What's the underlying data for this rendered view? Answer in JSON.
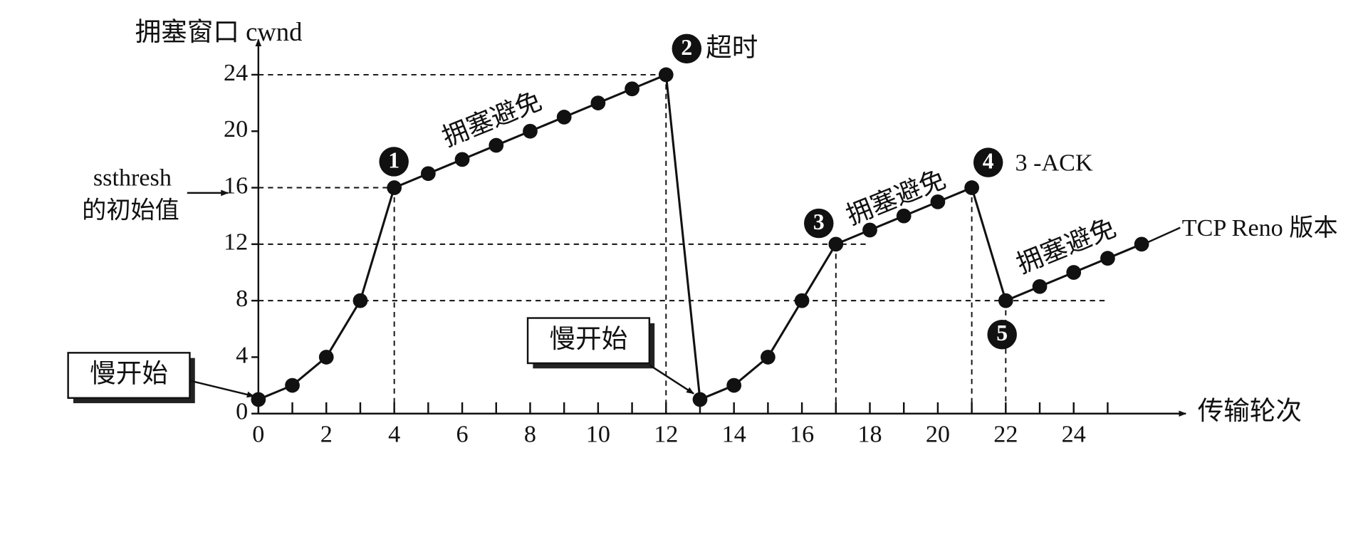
{
  "chart_data": {
    "type": "line",
    "y_label": "拥塞窗口  cwnd",
    "x_label": "传输轮次",
    "x": [
      0,
      1,
      2,
      3,
      4,
      5,
      6,
      7,
      8,
      9,
      10,
      11,
      12,
      13,
      14,
      15,
      16,
      17,
      18,
      19,
      20,
      21,
      22,
      23,
      24,
      25,
      26
    ],
    "series": [
      {
        "name": "cwnd",
        "color": "#111111",
        "values": [
          1,
          2,
          4,
          8,
          16,
          17,
          18,
          19,
          20,
          21,
          22,
          23,
          24,
          1,
          2,
          4,
          8,
          12,
          13,
          14,
          15,
          16,
          8,
          9,
          10,
          11,
          12
        ]
      }
    ],
    "xlim": [
      0,
      27.3
    ],
    "ylim": [
      0,
      26.5
    ],
    "xticks": [
      0,
      2,
      4,
      6,
      8,
      10,
      12,
      14,
      16,
      18,
      20,
      22,
      24
    ],
    "xminor_ticks": [
      1,
      3,
      5,
      7,
      9,
      11,
      13,
      15,
      17,
      19,
      21,
      23,
      25
    ],
    "yticks": [
      0,
      4,
      8,
      12,
      16,
      20,
      24
    ],
    "annotations": [
      {
        "text": "ssthresh"
      },
      {
        "text": "的初始值"
      },
      {
        "text": "慢开始"
      },
      {
        "text": "慢开始"
      },
      {
        "text": "拥塞避免"
      },
      {
        "text": "拥塞避免"
      },
      {
        "text": "拥塞避免"
      },
      {
        "text": "超时"
      },
      {
        "text": "3 -ACK"
      },
      {
        "text": "TCP Reno 版本"
      },
      {
        "text": "1"
      },
      {
        "text": "2"
      },
      {
        "text": "3"
      },
      {
        "text": "4"
      },
      {
        "text": "5"
      }
    ]
  }
}
